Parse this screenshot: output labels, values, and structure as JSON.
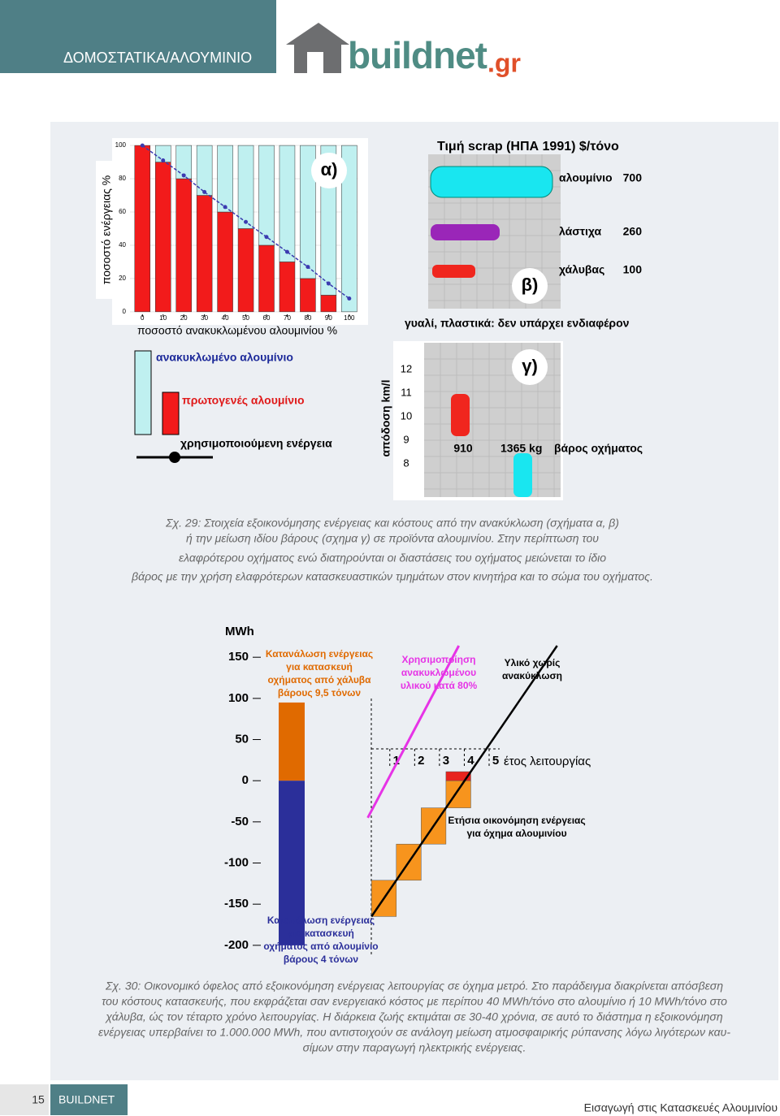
{
  "header": {
    "section": "ΔΟΜΟΣΤΑΤΙΚΑ/ΑΛΟΥΜΙΝΙΟ",
    "logo": "buildnet",
    "logo_suffix": ".gr"
  },
  "figure29": {
    "chart_a": {
      "type": "bar",
      "tag": "α)",
      "y_label": "ποσοστό ενέργειας %",
      "x_label": "ποσοστό ανακυκλωμένου αλουμινίου %",
      "x": [
        0,
        10,
        20,
        30,
        40,
        50,
        60,
        70,
        80,
        90,
        100
      ],
      "series": [
        {
          "name": "πρωτογενές αλουμίνιο",
          "color": "#f21b1b",
          "kind": "bar",
          "values": [
            100,
            90,
            80,
            70,
            60,
            50,
            40,
            30,
            20,
            10,
            0
          ]
        },
        {
          "name": "ανακυκλωμένο αλουμίνιο",
          "color": "#bff0f0",
          "kind": "bar",
          "values": [
            0,
            10,
            20,
            30,
            40,
            50,
            60,
            70,
            80,
            90,
            100
          ]
        },
        {
          "name": "χρησιμοποιούμενη ενέργεια",
          "color": "#3b3bb0",
          "kind": "line",
          "values": [
            100,
            91,
            82,
            72,
            63,
            54,
            45,
            36,
            27,
            17,
            8
          ]
        }
      ],
      "xlim": [
        -6,
        104
      ],
      "xticks": [
        0,
        10,
        20,
        30,
        40,
        50,
        60,
        70,
        80,
        90,
        100
      ],
      "ylim": [
        -3,
        102
      ],
      "yticks": [
        0,
        20,
        40,
        60,
        80,
        100
      ]
    },
    "chart_b": {
      "title": "Τιμή scrap (ΗΠΑ 1991) $/τόνο",
      "tag": "β)",
      "items": [
        {
          "name": "αλουμίνιο",
          "value": 700
        },
        {
          "name": "λάστιχα",
          "value": 260
        },
        {
          "name": "χάλυβας",
          "value": 100
        }
      ],
      "note": "γυαλί, πλαστικά: δεν υπάρχει ενδιαφέρον"
    },
    "chart_c": {
      "tag": "γ)",
      "y_label": "απόδοση km/l",
      "yticks": [
        12,
        11,
        10,
        9,
        8
      ],
      "xticks": [
        "910",
        "1365 kg"
      ],
      "x_label": "βάρος οχήματος"
    },
    "caption": [
      "Σχ. 29: Στοιχεία εξοικονόμησης ενέργειας και κόστους από την ανακύκλωση (σχήματα α, β)",
      "ή την μείωση ιδίου βάρους (σχημα γ) σε προϊόντα αλουμινίου. Στην περίπτωση του",
      "ελαφρότερου οχήματος ενώ διατηρούνται οι διαστάσεις του οχήματος μειώνεται το ίδιο",
      "βάρος με την χρήση ελαφρότερων κατασκευαστικών τμημάτων στον κινητήρα και το σώμα του οχήματος."
    ]
  },
  "figure30": {
    "type": "bar",
    "unit": "MWh",
    "ylim": [
      -211,
      164
    ],
    "yticks": [
      150,
      100,
      50,
      0,
      -50,
      -100,
      -150,
      -200
    ],
    "xlim": [
      -4,
      8.6
    ],
    "xticks": [
      1,
      2,
      3,
      4,
      5
    ],
    "x_label": "έτος λειτουργίας",
    "bars": [
      {
        "value": 95,
        "color": "#e06a00",
        "label": [
          "Κατανάλωση ενέργειας",
          "για κατασκευή",
          "οχήματος από χάλυβα",
          "βάρους 9,5 τόνων"
        ]
      },
      {
        "value": -200,
        "color": "#2b2f9a",
        "label": [
          "Κατανάλωση ενέργειας",
          "για κατασκευή",
          "οχήματος από αλουμίνιο",
          "βάρους 4 τόνων"
        ]
      }
    ],
    "no_recycling": {
      "label": [
        "Υλικό χωρίς",
        "ανακύκλωση"
      ],
      "color": "#000000",
      "start_year": 0,
      "start": -165,
      "annual_saving": 44
    },
    "recycled": {
      "label": [
        "Χρησιμοποίηση",
        "ανακυκλωμένου",
        "υλικού κατά 80%"
      ],
      "color": "#e633e6",
      "start_year": -0.15,
      "start": -45,
      "annual_saving": 57
    },
    "steps": {
      "label": [
        "Ετήσια οικονόμηση ενέργειας",
        "για όχημα αλουμινίου"
      ],
      "color": "#f7941d",
      "above_zero_color": "#e8231d",
      "years": [
        1,
        2,
        3,
        4
      ]
    },
    "caption": [
      "Σχ. 30: Οικονομικό όφελος από εξοικονόμηση ενέργειας λειτουργίας σε όχημα μετρό. Στο παράδειγμα διακρίνεται απόσβεση",
      "του κόστους κατασκευής, που εκφράζεται σαν ενεργειακό κόστος με περίπου 40 MWh/τόνο στο αλουμίνιο ή 10 MWh/τόνο στο",
      "χάλυβα, ώς τον τέταρτο χρόνο λειτουργίας. Η διάρκεια ζωής εκτιμάται σε 30-40 χρόνια, σε αυτό το διάστημα η εξοικονόμηση",
      "ενέργειας υπερβαίνει το 1.000.000 MWh, που αντιστοιχούν σε ανάλογη μείωση ατμοσφαιρικής ρύπανσης λόγω λιγότερων καυ-",
      "σίμων στην παραγωγή ηλεκτρικής ενέργειας."
    ]
  },
  "footer": {
    "page": "15",
    "brand": "BUILDNET",
    "title": "Εισαγωγή στις Κατασκευές Αλουμινίου"
  }
}
